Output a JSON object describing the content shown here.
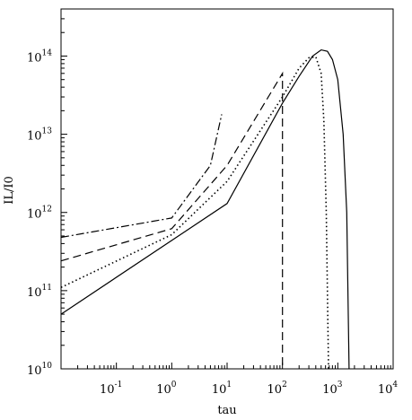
{
  "chart_data": {
    "type": "line",
    "xlabel": "tau",
    "ylabel": "IL/I0",
    "x_scale": "log",
    "y_scale": "log",
    "xlim": [
      0.01,
      10000
    ],
    "ylim": [
      10000000000,
      400000000000000
    ],
    "x_ticks": [
      {
        "value": 0.1,
        "base": "10",
        "exp": "-1"
      },
      {
        "value": 1,
        "base": "10",
        "exp": "0"
      },
      {
        "value": 10,
        "base": "10",
        "exp": "1"
      },
      {
        "value": 100,
        "base": "10",
        "exp": "2"
      },
      {
        "value": 1000,
        "base": "10",
        "exp": "3"
      },
      {
        "value": 10000,
        "base": "10",
        "exp": "4"
      }
    ],
    "y_ticks": [
      {
        "value": 10000000000,
        "base": "10",
        "exp": "10"
      },
      {
        "value": 100000000000,
        "base": "10",
        "exp": "11"
      },
      {
        "value": 1000000000000,
        "base": "10",
        "exp": "12"
      },
      {
        "value": 10000000000000,
        "base": "10",
        "exp": "13"
      },
      {
        "value": 100000000000000,
        "base": "10",
        "exp": "14"
      }
    ],
    "grid": false,
    "series": [
      {
        "style": "solid",
        "x": [
          0.01,
          10,
          100,
          200,
          350,
          500,
          650,
          800,
          1000,
          1250,
          1450,
          1600
        ],
        "y": [
          50000000000,
          1300000000000,
          25000000000000,
          55000000000000,
          100000000000000,
          120000000000000,
          115000000000000,
          90000000000000,
          50000000000000,
          10000000000000,
          1000000000000,
          10000000000
        ]
      },
      {
        "style": "dotted",
        "x": [
          0.01,
          1,
          10,
          100,
          200,
          300,
          400,
          500,
          560,
          620,
          680
        ],
        "y": [
          110000000000,
          520000000000,
          2500000000000,
          30000000000000,
          70000000000000,
          95000000000000,
          98000000000000,
          60000000000000,
          15000000000000,
          1000000000000,
          10000000000
        ]
      },
      {
        "style": "dashed",
        "x": [
          0.01,
          1,
          10,
          100,
          100
        ],
        "y": [
          240000000000,
          620000000000,
          4000000000000,
          60000000000000,
          10000000000
        ]
      },
      {
        "style": "dash-dot",
        "x": [
          0.01,
          1,
          5,
          8
        ],
        "y": [
          480000000000,
          850000000000,
          4000000000000,
          18000000000000
        ]
      }
    ]
  }
}
